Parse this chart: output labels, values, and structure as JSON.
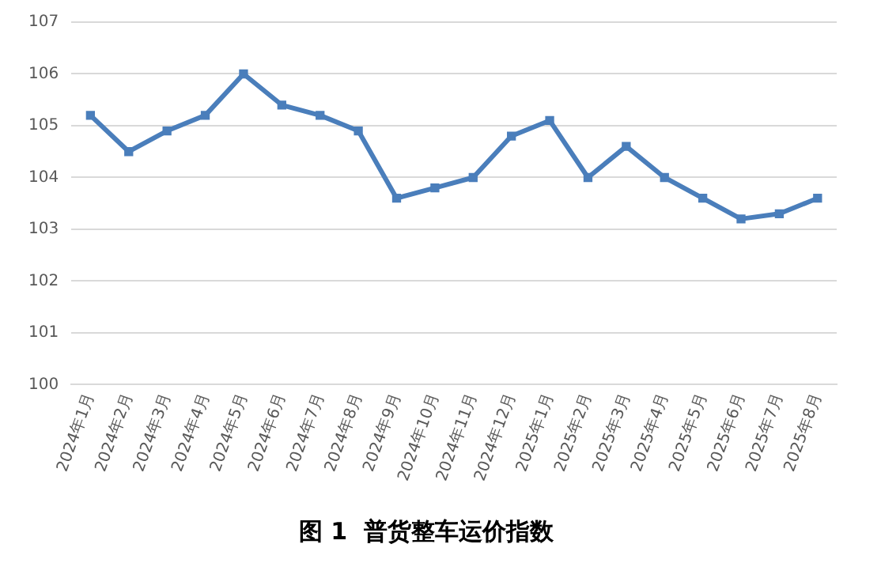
{
  "chart_data": {
    "type": "line",
    "title": "图 1  普货整车运价指数",
    "categories": [
      "2024年1月",
      "2024年2月",
      "2024年3月",
      "2024年4月",
      "2024年5月",
      "2024年6月",
      "2024年7月",
      "2024年8月",
      "2024年9月",
      "2024年10月",
      "2024年11月",
      "2024年12月",
      "2025年1月",
      "2025年2月",
      "2025年3月",
      "2025年4月",
      "2025年5月",
      "2025年6月",
      "2025年7月",
      "2025年8月"
    ],
    "series": [
      {
        "color": "#4a7ebb",
        "values": [
          105.2,
          104.5,
          104.9,
          105.2,
          106.0,
          105.4,
          105.2,
          104.9,
          103.6,
          103.8,
          104.0,
          104.8,
          105.1,
          104.0,
          104.6,
          104.0,
          103.6,
          103.2,
          103.3,
          103.6
        ]
      }
    ],
    "ylim": [
      100,
      107
    ],
    "yticks": [
      100,
      101,
      102,
      103,
      104,
      105,
      106,
      107
    ],
    "grid": "y",
    "marker": "square",
    "line_style": "solid",
    "legend": false
  }
}
